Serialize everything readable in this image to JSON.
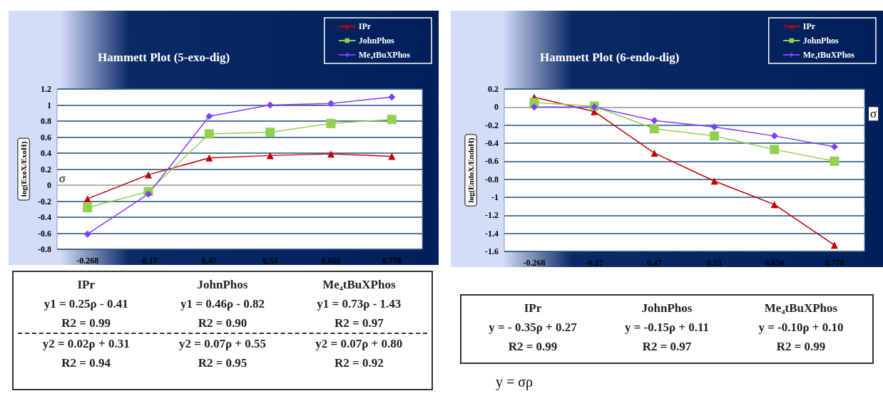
{
  "chart_data": [
    {
      "type": "line",
      "title": "Hammett Plot (5-exo-dig)",
      "xlabel": "σ",
      "ylabel": "log(ExoX/ExoH)",
      "categories": [
        "-0.268",
        "-0.17",
        "0.47",
        "0.53",
        "0.656",
        "0.778"
      ],
      "series": [
        {
          "name": "IPr",
          "color": "#c00000",
          "marker": "triangle",
          "values": [
            -0.17,
            0.13,
            0.34,
            0.37,
            0.39,
            0.36
          ]
        },
        {
          "name": "JohnPhos",
          "color": "#92d050",
          "marker": "square",
          "values": [
            -0.28,
            -0.08,
            0.64,
            0.66,
            0.77,
            0.82
          ]
        },
        {
          "name": "Me₄tBuXPhos",
          "color": "#7f3fff",
          "marker": "diamond",
          "values": [
            -0.61,
            -0.11,
            0.86,
            1.0,
            1.02,
            1.1
          ]
        }
      ],
      "ylim": [
        -0.8,
        1.2
      ],
      "yticks": [
        -0.8,
        -0.6,
        -0.4,
        -0.2,
        0,
        0.2,
        0.4,
        0.6,
        0.8,
        1,
        1.2
      ],
      "grid": "y",
      "legend": "top right",
      "line_style": "solid",
      "annotations": [
        "IPr",
        "JohnPhos",
        "Me₄tBuXPhos",
        "y1 = 0.25ρ - 0.41",
        "y1 = 0.46ρ - 0.82",
        "y1 = 0.73ρ - 1.43",
        "R2  = 0.99",
        "R2 = 0.90",
        "R2 = 0.97",
        "y2 = 0.02ρ + 0.31",
        "y2 = 0.07ρ + 0.55",
        "y2 = 0.07ρ + 0.80",
        "R2 = 0.94",
        "R2 = 0.95",
        "R2 = 0.92"
      ]
    },
    {
      "type": "line",
      "title": "Hammett Plot (6-endo-dig)",
      "xlabel": "σ",
      "ylabel": "log(EndoX/EndoH)",
      "categories": [
        "-0.268",
        "-0.17",
        "0.47",
        "0.53",
        "0.656",
        "0.778"
      ],
      "series": [
        {
          "name": "IPr",
          "color": "#c00000",
          "marker": "triangle",
          "values": [
            0.11,
            -0.05,
            -0.51,
            -0.82,
            -1.08,
            -1.53
          ]
        },
        {
          "name": "JohnPhos",
          "color": "#92d050",
          "marker": "square",
          "values": [
            0.05,
            0.01,
            -0.24,
            -0.32,
            -0.47,
            -0.6
          ]
        },
        {
          "name": "Me₄tBuXPhos",
          "color": "#7f3fff",
          "marker": "diamond",
          "values": [
            0.0,
            0.0,
            -0.15,
            -0.22,
            -0.32,
            -0.44
          ]
        }
      ],
      "ylim": [
        -1.6,
        0.2
      ],
      "yticks": [
        -1.6,
        -1.4,
        -1.2,
        -1,
        -0.8,
        -0.6,
        -0.4,
        -0.2,
        0,
        0.2
      ],
      "grid": "y",
      "legend": "top right",
      "line_style": "solid",
      "annotations": [
        "IPr",
        "JohnPhos",
        "Me₄tBuXPhos",
        "y = - 0.35ρ + 0.27",
        "y = -0.15ρ + 0.11",
        "y = -0.10ρ + 0.10",
        "R2 = 0.99",
        "R2 = 0.97",
        "R2 = 0.99",
        "y = σρ"
      ]
    }
  ]
}
